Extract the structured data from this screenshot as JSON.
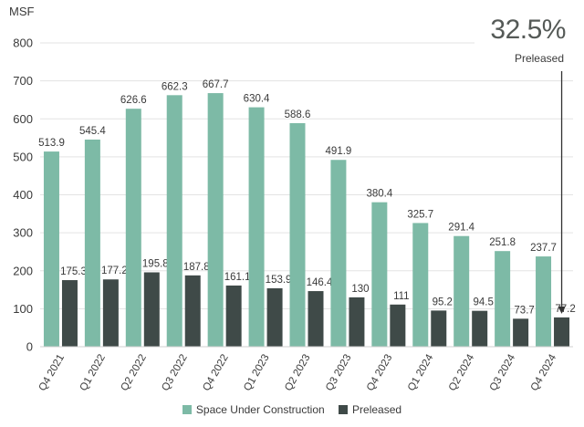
{
  "chart_data": {
    "type": "bar",
    "ylabel": "MSF",
    "ylim": [
      0,
      800
    ],
    "yticks": [
      0,
      100,
      200,
      300,
      400,
      500,
      600,
      700,
      800
    ],
    "categories": [
      "Q4 2021",
      "Q1 2022",
      "Q2 2022",
      "Q3 2022",
      "Q4 2022",
      "Q1 2023",
      "Q2 2023",
      "Q3 2023",
      "Q4 2023",
      "Q1 2024",
      "Q2 2024",
      "Q3 2024",
      "Q4 2024"
    ],
    "series": [
      {
        "name": "Space Under Construction",
        "color": "#7dbaa6",
        "values": [
          513.9,
          545.4,
          626.6,
          662.3,
          667.7,
          630.4,
          588.6,
          491.9,
          380.4,
          325.7,
          291.4,
          251.8,
          237.7
        ],
        "labels": [
          "513.9",
          "545.4",
          "626.6",
          "662.3",
          "667.7",
          "630.4",
          "588.6",
          "491.9",
          "380.4",
          "325.7",
          "291.4",
          "251.8",
          "237.7"
        ]
      },
      {
        "name": "Preleased",
        "color": "#3f4a48",
        "values": [
          175.3,
          177.2,
          195.8,
          187.8,
          161.1,
          153.9,
          146.4,
          130,
          111,
          95.2,
          94.5,
          73.7,
          77.2
        ],
        "labels": [
          "175.3",
          "177.2",
          "195.8",
          "187.8",
          "161.1",
          "153.9",
          "146.4",
          "130",
          "111",
          "95.2",
          "94.5",
          "73.7",
          "77.2"
        ]
      }
    ],
    "annotation": {
      "value": "32.5%",
      "label": "Preleased"
    },
    "grid": true,
    "legend": "bottom-center"
  }
}
